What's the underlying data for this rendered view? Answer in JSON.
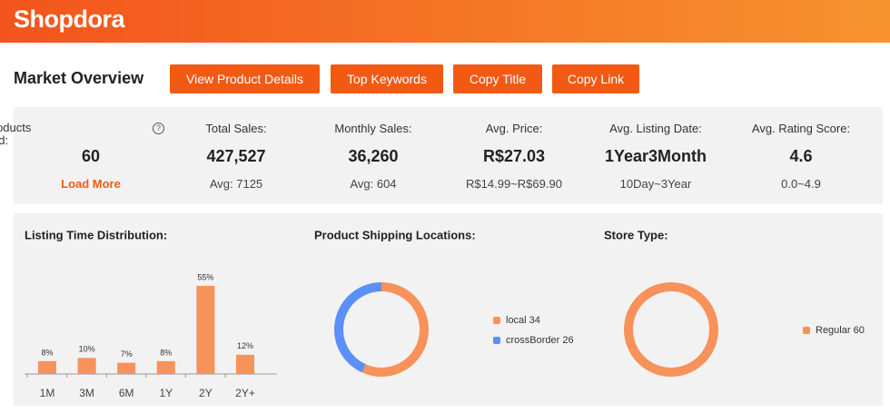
{
  "header": {
    "logo": "Shopdora"
  },
  "toolbar": {
    "title": "Market Overview",
    "buttons": [
      "View Product Details",
      "Top Keywords",
      "Copy Title",
      "Copy Link"
    ]
  },
  "stats": [
    {
      "label": "Total Products Analyzed:",
      "help": "?",
      "value": "60",
      "action": "Load More"
    },
    {
      "label": "Total Sales:",
      "value": "427,527",
      "sub": "Avg: 7125"
    },
    {
      "label": "Monthly Sales:",
      "value": "36,260",
      "sub": "Avg: 604"
    },
    {
      "label": "Avg. Price:",
      "value": "R$27.03",
      "sub": "R$14.99~R$69.90"
    },
    {
      "label": "Avg. Listing Date:",
      "value": "1Year3Month",
      "sub": "10Day~3Year"
    },
    {
      "label": "Avg. Rating Score:",
      "value": "4.6",
      "sub": "0.0~4.9"
    }
  ],
  "chart_data": [
    {
      "type": "bar",
      "title": "Listing Time Distribution:",
      "categories": [
        "1M",
        "3M",
        "6M",
        "1Y",
        "2Y",
        "2Y+"
      ],
      "values": [
        8,
        10,
        7,
        8,
        55,
        12
      ],
      "value_labels": [
        "8%",
        "10%",
        "7%",
        "8%",
        "55%",
        "12%"
      ],
      "color": "#f7925a"
    },
    {
      "type": "pie",
      "title": "Product Shipping Locations:",
      "labels": [
        "local 34",
        "crossBorder 26"
      ],
      "values": [
        34,
        26
      ],
      "colors": [
        "#f7925a",
        "#5b8ff9"
      ]
    },
    {
      "type": "pie",
      "title": "Store Type:",
      "labels": [
        "Regular 60"
      ],
      "values": [
        60
      ],
      "colors": [
        "#f7925a"
      ]
    }
  ]
}
